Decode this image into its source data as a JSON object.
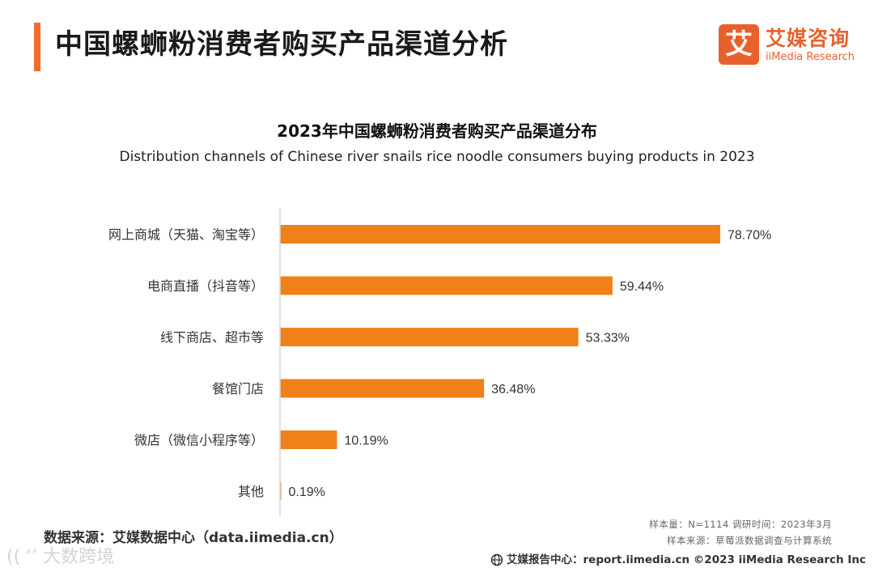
{
  "header": {
    "title": "中国螺蛳粉消费者购买产品渠道分析",
    "logo_mark": "艾",
    "logo_cn": "艾媒咨询",
    "logo_en": "iiMedia Research"
  },
  "chart_data": {
    "type": "bar",
    "orientation": "horizontal",
    "title": "2023年中国螺蛳粉消费者购买产品渠道分布",
    "subtitle": "Distribution channels of Chinese river snails rice noodle consumers buying products in 2023",
    "categories": [
      "网上商城（天猫、淘宝等）",
      "电商直播（抖音等）",
      "线下商店、超市等",
      "餐馆门店",
      "微店（微信小程序等）",
      "其他"
    ],
    "values": [
      78.7,
      59.44,
      53.33,
      36.48,
      10.19,
      0.19
    ],
    "data_labels": [
      "78.70%",
      "59.44%",
      "53.33%",
      "36.48%",
      "10.19%",
      "0.19%"
    ],
    "xlim": [
      0,
      80
    ],
    "unit": "%",
    "bar_color": "#f08119",
    "axis_color": "#d9d9d9",
    "grid": false,
    "legend": "none"
  },
  "source": "数据来源：艾媒数据中心（data.iimedia.cn）",
  "notes": {
    "sample": "样本量：N=1114      调研时间：2023年3月",
    "sample_source": "样本来源：草莓派数据调查与计算系统"
  },
  "footer": {
    "text": "艾媒报告中心：report.iimedia.cn  ©2023  iiMedia Research  Inc"
  },
  "watermark": "(( ‘’ 大数跨境",
  "colors": {
    "accent": "#ee6d2d",
    "brand": "#e8612c"
  }
}
